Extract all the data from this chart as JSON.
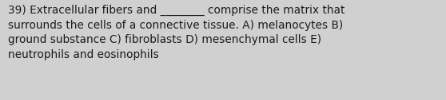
{
  "text": "39) Extracellular fibers and ________ comprise the matrix that\nsurrounds the cells of a connective tissue. A) melanocytes B)\nground substance C) fibroblasts D) mesenchymal cells E)\nneutrophils and eosinophils",
  "background_color": "#d0d0d0",
  "text_color": "#1a1a1a",
  "font_size": 9.8,
  "fig_width": 5.58,
  "fig_height": 1.26,
  "dpi": 100
}
